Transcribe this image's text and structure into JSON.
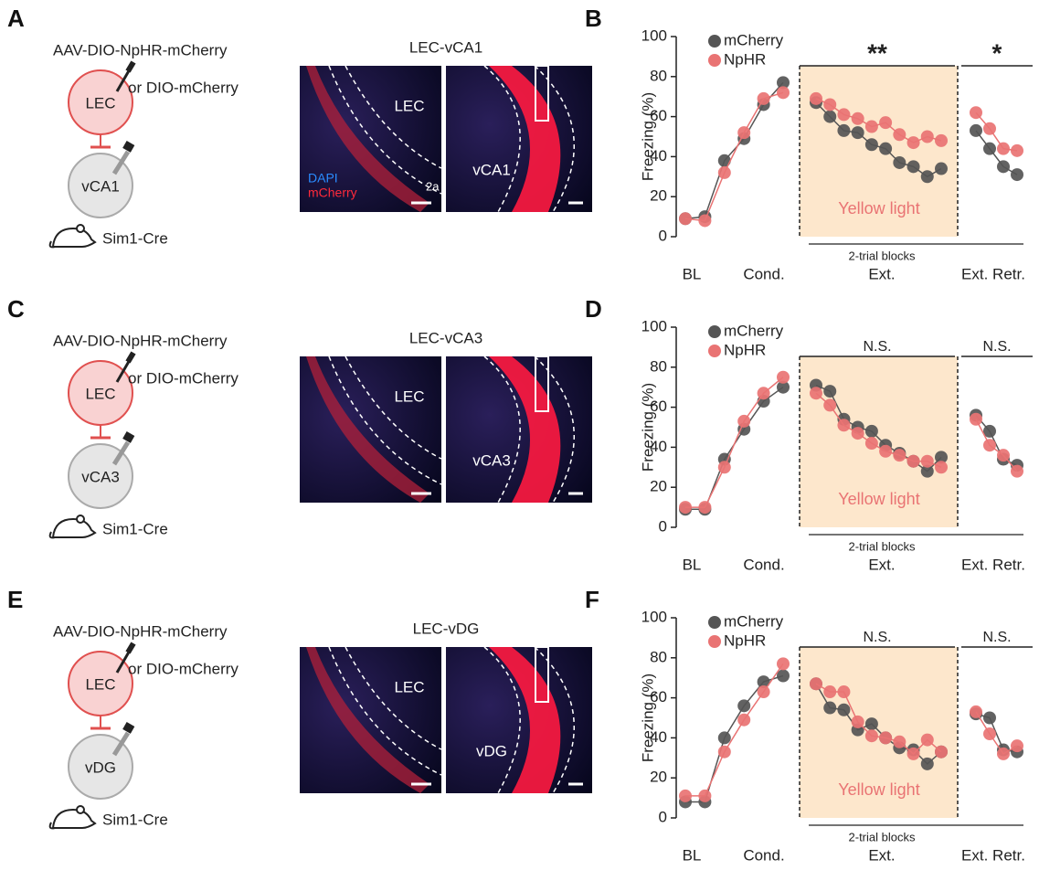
{
  "panel_letters": [
    "A",
    "B",
    "C",
    "D",
    "E",
    "F"
  ],
  "schematics": [
    {
      "construct": "AAV-DIO-NpHR-mCherry",
      "alternative": "or DIO-mCherry",
      "source": "LEC",
      "target": "vCA1",
      "mouse": "Sim1-Cre"
    },
    {
      "construct": "AAV-DIO-NpHR-mCherry",
      "alternative": "or DIO-mCherry",
      "source": "LEC",
      "target": "vCA3",
      "mouse": "Sim1-Cre"
    },
    {
      "construct": "AAV-DIO-NpHR-mCherry",
      "alternative": "or DIO-mCherry",
      "source": "LEC",
      "target": "vDG",
      "mouse": "Sim1-Cre"
    }
  ],
  "images": [
    {
      "title": "LEC-vCA1",
      "left_label": "LEC",
      "right_label": "vCA1",
      "stains": [
        "DAPI",
        "mCherry"
      ],
      "layer": "2a"
    },
    {
      "title": "LEC-vCA3",
      "left_label": "LEC",
      "right_label": "vCA3"
    },
    {
      "title": "LEC-vDG",
      "left_label": "LEC",
      "right_label": "vDG"
    }
  ],
  "chart_data": [
    {
      "type": "line",
      "ylabel": "Freezing (%)",
      "ylim": [
        0,
        100
      ],
      "yticks": [
        0,
        20,
        40,
        60,
        80,
        100
      ],
      "categories": [
        null,
        null,
        null,
        null,
        null,
        null,
        null,
        null,
        null,
        null,
        null,
        null,
        null,
        null,
        null,
        null,
        null,
        null,
        null,
        null,
        null,
        null
      ],
      "x_group_labels": [
        "BL",
        "Cond.",
        "Ext.",
        "Ext. Retr."
      ],
      "shade_label": "Yellow light",
      "shade_color": "#fde7cc",
      "block_label": "2-trial blocks",
      "significance": [
        "**",
        "*"
      ],
      "series": [
        {
          "name": "mCherry",
          "color": "#555555",
          "values": [
            9,
            10,
            38,
            49,
            66,
            77,
            null,
            67,
            60,
            53,
            52,
            46,
            44,
            37,
            35,
            30,
            34,
            null,
            53,
            44,
            35,
            31
          ]
        },
        {
          "name": "NpHR",
          "color": "#e97373",
          "values": [
            9,
            8,
            32,
            52,
            69,
            72,
            null,
            69,
            66,
            61,
            59,
            55,
            57,
            51,
            47,
            50,
            48,
            null,
            62,
            54,
            44,
            43
          ]
        }
      ]
    },
    {
      "type": "line",
      "ylabel": "Freezing (%)",
      "ylim": [
        0,
        100
      ],
      "yticks": [
        0,
        20,
        40,
        60,
        80,
        100
      ],
      "categories": [
        null,
        null,
        null,
        null,
        null,
        null,
        null,
        null,
        null,
        null,
        null,
        null,
        null,
        null,
        null,
        null,
        null,
        null,
        null,
        null,
        null,
        null
      ],
      "x_group_labels": [
        "BL",
        "Cond.",
        "Ext.",
        "Ext. Retr."
      ],
      "shade_label": "Yellow light",
      "shade_color": "#fde7cc",
      "block_label": "2-trial blocks",
      "significance": [
        "N.S.",
        "N.S."
      ],
      "series": [
        {
          "name": "mCherry",
          "color": "#555555",
          "values": [
            9,
            9,
            34,
            49,
            63,
            70,
            null,
            71,
            68,
            54,
            50,
            48,
            41,
            37,
            33,
            28,
            35,
            null,
            56,
            48,
            34,
            31
          ]
        },
        {
          "name": "NpHR",
          "color": "#e97373",
          "values": [
            10,
            10,
            30,
            53,
            67,
            75,
            null,
            67,
            61,
            51,
            47,
            42,
            38,
            36,
            33,
            33,
            30,
            null,
            54,
            41,
            36,
            28
          ]
        }
      ]
    },
    {
      "type": "line",
      "ylabel": "Freezing (%)",
      "ylim": [
        0,
        100
      ],
      "yticks": [
        0,
        20,
        40,
        60,
        80,
        100
      ],
      "categories": [
        null,
        null,
        null,
        null,
        null,
        null,
        null,
        null,
        null,
        null,
        null,
        null,
        null,
        null,
        null,
        null,
        null,
        null,
        null,
        null,
        null,
        null
      ],
      "x_group_labels": [
        "BL",
        "Cond.",
        "Ext.",
        "Ext. Retr."
      ],
      "shade_label": "Yellow light",
      "shade_color": "#fde7cc",
      "block_label": "2-trial blocks",
      "significance": [
        "N.S.",
        "N.S."
      ],
      "series": [
        {
          "name": "mCherry",
          "color": "#555555",
          "values": [
            8,
            8,
            40,
            56,
            68,
            71,
            null,
            67,
            55,
            54,
            44,
            47,
            40,
            35,
            34,
            27,
            33,
            null,
            52,
            50,
            34,
            33
          ]
        },
        {
          "name": "NpHR",
          "color": "#e97373",
          "values": [
            11,
            11,
            33,
            49,
            63,
            77,
            null,
            67,
            63,
            63,
            48,
            41,
            40,
            38,
            32,
            39,
            33,
            null,
            53,
            42,
            32,
            36
          ]
        }
      ]
    }
  ]
}
